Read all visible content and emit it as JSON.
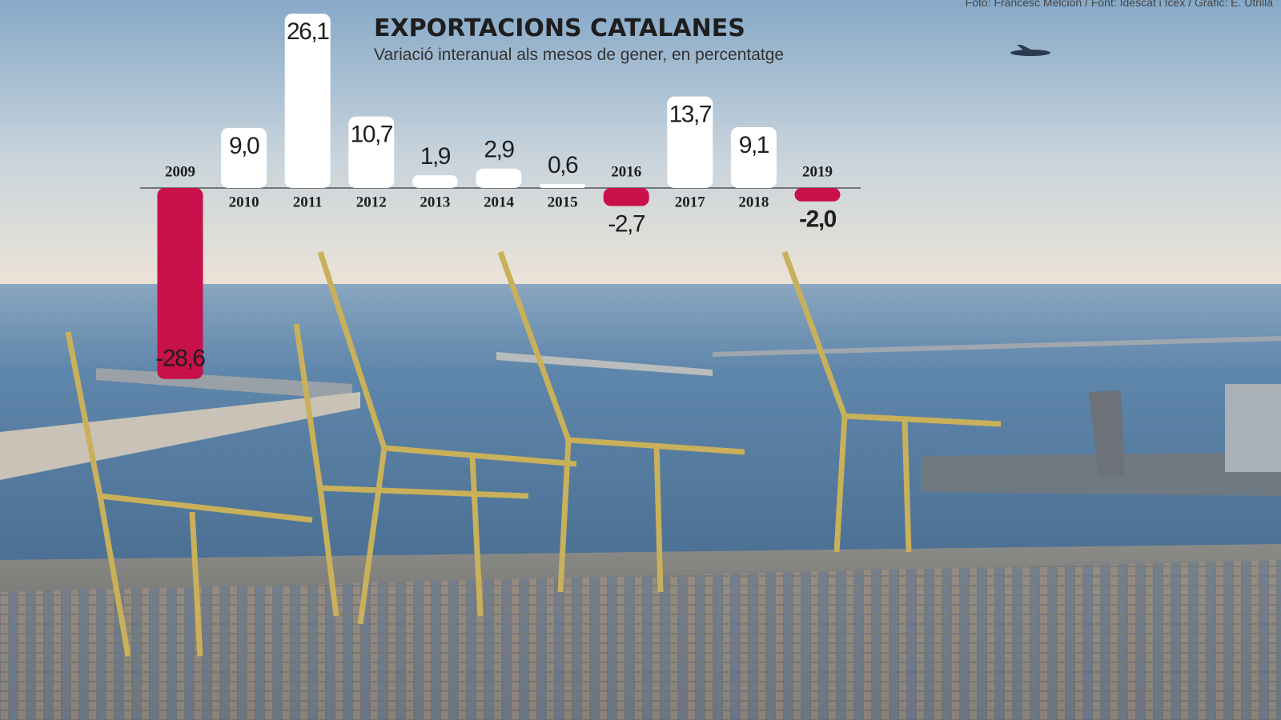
{
  "credit": "Foto: Francesc Melcion / Font: Idescat i Icex / Gràfic: E. Utrilla",
  "chart_data": {
    "type": "bar",
    "title": "EXPORTACIONS CATALANES",
    "subtitle": "Variació interanual als mesos de gener, en percentatge",
    "categories": [
      "2009",
      "2010",
      "2011",
      "2012",
      "2013",
      "2014",
      "2015",
      "2016",
      "2017",
      "2018",
      "2019"
    ],
    "values": [
      -28.6,
      9.0,
      26.1,
      10.7,
      1.9,
      2.9,
      0.6,
      -2.7,
      13.7,
      9.1,
      -2.0
    ],
    "value_labels": [
      "-28,6",
      "9,0",
      "26,1",
      "10,7",
      "1,9",
      "2,9",
      "0,6",
      "-2,7",
      "13,7",
      "9,1",
      "-2,0"
    ],
    "positive_color": "#ffffff",
    "negative_color": "#c8104a"
  }
}
